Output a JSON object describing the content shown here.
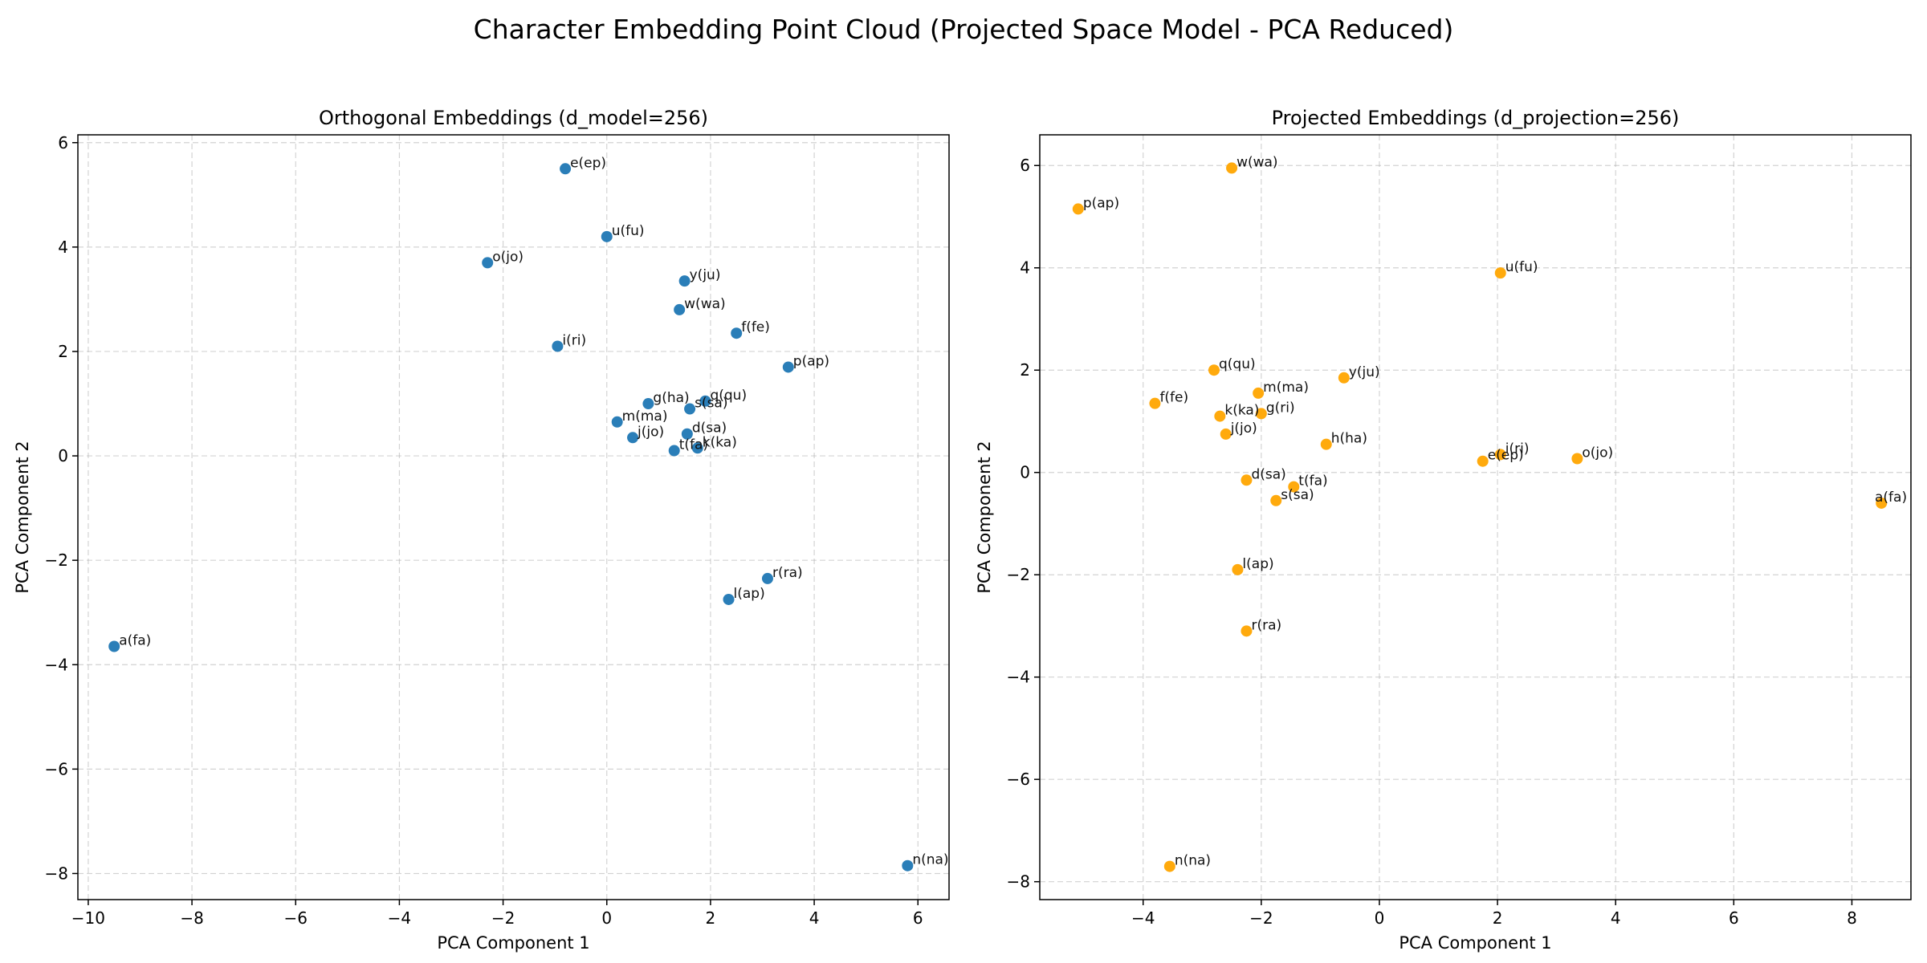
{
  "figure": {
    "suptitle": "Character Embedding Point Cloud (Projected Space Model - PCA Reduced)"
  },
  "chart_data": [
    {
      "type": "scatter",
      "title": "Orthogonal Embeddings (d_model=256)",
      "xlabel": "PCA Component 1",
      "ylabel": "PCA Component 2",
      "xlim": [
        -10.2,
        6.6
      ],
      "ylim": [
        -8.5,
        6.15
      ],
      "xticks": [
        -10,
        -8,
        -6,
        -4,
        -2,
        0,
        2,
        4,
        6
      ],
      "yticks": [
        -8,
        -6,
        -4,
        -2,
        0,
        2,
        4,
        6
      ],
      "grid": true,
      "color": "#1f77b4",
      "points": [
        {
          "x": -0.8,
          "y": 5.5,
          "label": "e(ep)"
        },
        {
          "x": 0.0,
          "y": 4.2,
          "label": "u(fu)"
        },
        {
          "x": -2.3,
          "y": 3.7,
          "label": "o(jo)"
        },
        {
          "x": 1.5,
          "y": 3.35,
          "label": "y(ju)"
        },
        {
          "x": 1.4,
          "y": 2.8,
          "label": "w(wa)"
        },
        {
          "x": 2.5,
          "y": 2.35,
          "label": "f(fe)"
        },
        {
          "x": -0.95,
          "y": 2.1,
          "label": "i(ri)"
        },
        {
          "x": 3.5,
          "y": 1.7,
          "label": "p(ap)"
        },
        {
          "x": 0.8,
          "y": 1.0,
          "label": "g(ha)"
        },
        {
          "x": 1.6,
          "y": 0.9,
          "label": "s(sa)"
        },
        {
          "x": 1.9,
          "y": 1.05,
          "label": "q(qu)"
        },
        {
          "x": 0.2,
          "y": 0.65,
          "label": "m(ma)"
        },
        {
          "x": 0.5,
          "y": 0.35,
          "label": "j(jo)"
        },
        {
          "x": 1.55,
          "y": 0.42,
          "label": "d(sa)"
        },
        {
          "x": 1.3,
          "y": 0.1,
          "label": "t(fa)"
        },
        {
          "x": 1.75,
          "y": 0.15,
          "label": "k(ka)"
        },
        {
          "x": 3.1,
          "y": -2.35,
          "label": "r(ra)"
        },
        {
          "x": 2.35,
          "y": -2.75,
          "label": "l(ap)"
        },
        {
          "x": -9.5,
          "y": -3.65,
          "label": "a(fa)"
        },
        {
          "x": 5.8,
          "y": -7.85,
          "label": "n(na)"
        }
      ]
    },
    {
      "type": "scatter",
      "title": "Projected Embeddings (d_projection=256)",
      "xlabel": "PCA Component 1",
      "ylabel": "PCA Component 2",
      "xlim": [
        -5.75,
        9.0
      ],
      "ylim": [
        -8.35,
        6.6
      ],
      "xticks": [
        -4,
        -2,
        0,
        2,
        4,
        6,
        8
      ],
      "yticks": [
        -8,
        -6,
        -4,
        -2,
        0,
        2,
        4,
        6
      ],
      "grid": true,
      "color": "#ffa500",
      "points": [
        {
          "x": -2.5,
          "y": 5.95,
          "label": "w(wa)"
        },
        {
          "x": -5.1,
          "y": 5.15,
          "label": "p(ap)"
        },
        {
          "x": 2.05,
          "y": 3.9,
          "label": "u(fu)"
        },
        {
          "x": -2.8,
          "y": 2.0,
          "label": "q(qu)"
        },
        {
          "x": -0.6,
          "y": 1.85,
          "label": "y(ju)"
        },
        {
          "x": -2.05,
          "y": 1.55,
          "label": "m(ma)"
        },
        {
          "x": -3.8,
          "y": 1.35,
          "label": "f(fe)"
        },
        {
          "x": -2.7,
          "y": 1.1,
          "label": "k(ka)"
        },
        {
          "x": -2.0,
          "y": 1.15,
          "label": "g(ri)"
        },
        {
          "x": -2.6,
          "y": 0.75,
          "label": "j(jo)"
        },
        {
          "x": -0.9,
          "y": 0.55,
          "label": "h(ha)"
        },
        {
          "x": 2.05,
          "y": 0.35,
          "label": "i(ri)"
        },
        {
          "x": 1.75,
          "y": 0.22,
          "label": "e(ep)"
        },
        {
          "x": 3.35,
          "y": 0.27,
          "label": "o(jo)"
        },
        {
          "x": -2.25,
          "y": -0.15,
          "label": "d(sa)"
        },
        {
          "x": -1.45,
          "y": -0.28,
          "label": "t(fa)"
        },
        {
          "x": -1.75,
          "y": -0.55,
          "label": "s(sa)"
        },
        {
          "x": 8.5,
          "y": -0.6,
          "label": "a(fa)"
        },
        {
          "x": -2.4,
          "y": -1.9,
          "label": "l(ap)"
        },
        {
          "x": -2.25,
          "y": -3.1,
          "label": "r(ra)"
        },
        {
          "x": -3.55,
          "y": -7.7,
          "label": "n(na)"
        }
      ]
    }
  ]
}
